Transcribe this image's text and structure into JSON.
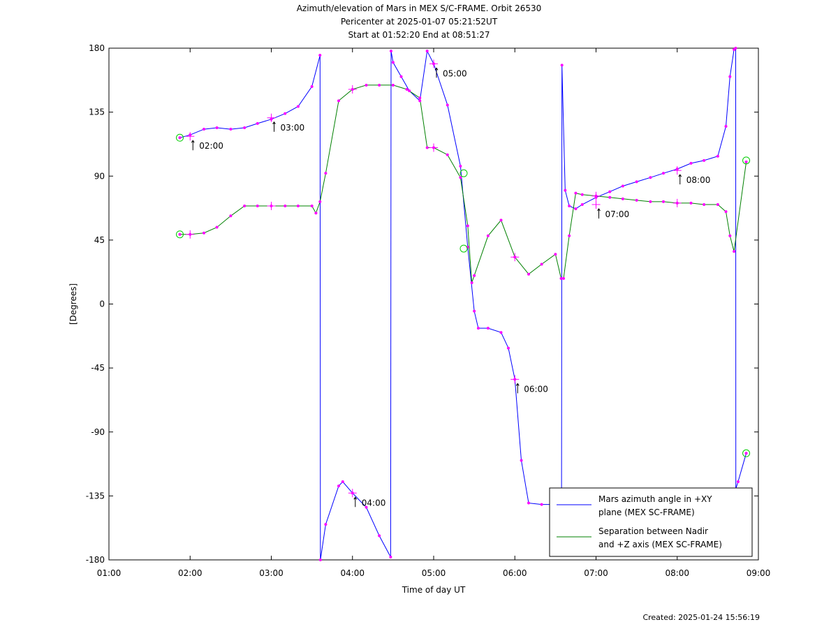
{
  "chart_data": {
    "type": "line",
    "title_lines": [
      "Azimuth/elevation of Mars in MEX S/C-FRAME.  Orbit 26530",
      "Pericenter at 2025-01-07 05:21:52UT",
      "Start at 01:52:20 End at 08:51:27"
    ],
    "xlabel": "Time of day UT",
    "ylabel": "[Degrees]",
    "xlim": [
      1.0,
      9.0
    ],
    "ylim": [
      -180,
      180
    ],
    "x_ticks": [
      1,
      2,
      3,
      4,
      5,
      6,
      7,
      8,
      9
    ],
    "x_tick_labels": [
      "01:00",
      "02:00",
      "03:00",
      "04:00",
      "05:00",
      "06:00",
      "07:00",
      "08:00",
      "09:00"
    ],
    "y_ticks": [
      180,
      135,
      90,
      45,
      0,
      -45,
      -90,
      -135,
      -180
    ],
    "y_tick_labels": [
      "180",
      "135",
      "90",
      "45",
      "0",
      "-45",
      "-90",
      "-135",
      "-180"
    ],
    "legend_position": "bottom-right",
    "series": [
      {
        "name": "Mars azimuth angle in +XY plane (MEX SC-FRAME)",
        "legend_lines": [
          "Mars azimuth angle in +XY",
          "plane (MEX SC-FRAME)"
        ],
        "color": "#0000ff",
        "x": [
          1.873,
          2.0,
          2.17,
          2.33,
          2.5,
          2.67,
          2.83,
          3.0,
          3.17,
          3.33,
          3.5,
          3.6,
          3.605,
          3.67,
          3.83,
          3.88,
          4.0,
          4.17,
          4.33,
          4.47,
          4.475,
          4.5,
          4.6,
          4.7,
          4.83,
          4.92,
          5.0,
          5.17,
          5.33,
          5.42,
          5.5,
          5.55,
          5.67,
          5.83,
          5.92,
          6.0,
          6.08,
          6.17,
          6.33,
          6.5,
          6.575,
          6.58,
          6.62,
          6.67,
          6.75,
          6.83,
          7.0,
          7.17,
          7.33,
          7.5,
          7.67,
          7.83,
          8.0,
          8.17,
          8.33,
          8.5,
          8.6,
          8.65,
          8.7,
          8.72,
          8.722,
          8.75,
          8.85
        ],
        "y": [
          117,
          119,
          123,
          124,
          123,
          124,
          127,
          130,
          134,
          139,
          153,
          175,
          -180,
          -155,
          -128,
          -125,
          -133,
          -143,
          -163,
          -178,
          178,
          170,
          160,
          150,
          143,
          178,
          169,
          140,
          97,
          40,
          -5,
          -17,
          -17,
          -20,
          -31,
          -53,
          -110,
          -140,
          -141,
          -141,
          -141,
          168,
          80,
          69,
          67,
          70,
          75,
          79,
          83,
          86,
          89,
          92,
          95,
          99,
          101,
          104,
          125,
          160,
          179,
          180,
          -130,
          -125,
          -105
        ]
      },
      {
        "name": "Separation between Nadir and +Z axis (MEX SC-FRAME)",
        "legend_lines": [
          "Separation between Nadir",
          "and +Z axis (MEX SC-FRAME)"
        ],
        "color": "#008000",
        "x": [
          1.873,
          2.0,
          2.17,
          2.33,
          2.5,
          2.67,
          2.83,
          3.0,
          3.17,
          3.33,
          3.5,
          3.55,
          3.6,
          3.67,
          3.83,
          4.0,
          4.17,
          4.33,
          4.5,
          4.67,
          4.83,
          4.92,
          5.0,
          5.17,
          5.33,
          5.42,
          5.47,
          5.5,
          5.67,
          5.83,
          6.0,
          6.17,
          6.33,
          6.5,
          6.57,
          6.6,
          6.67,
          6.75,
          6.83,
          7.0,
          7.17,
          7.33,
          7.5,
          7.67,
          7.83,
          8.0,
          8.17,
          8.33,
          8.5,
          8.6,
          8.65,
          8.7,
          8.85
        ],
        "y": [
          49,
          49,
          50,
          54,
          62,
          69,
          69,
          69,
          69,
          69,
          69,
          64,
          72,
          92,
          143,
          151,
          154,
          154,
          154,
          151,
          145,
          110,
          110,
          105,
          89,
          55,
          15,
          20,
          48,
          59,
          33,
          21,
          28,
          35,
          18,
          18,
          48,
          78,
          77,
          76,
          75,
          74,
          73,
          72,
          72,
          71,
          71,
          70,
          70,
          65,
          48,
          37,
          100
        ]
      }
    ],
    "annotations": [
      {
        "text": "02:00",
        "x": 2.0,
        "y": 118
      },
      {
        "text": "03:00",
        "x": 3.0,
        "y": 131
      },
      {
        "text": "04:00",
        "x": 4.0,
        "y": -133
      },
      {
        "text": "05:00",
        "x": 5.0,
        "y": 169
      },
      {
        "text": "06:00",
        "x": 6.0,
        "y": -53
      },
      {
        "text": "07:00",
        "x": 7.0,
        "y": 70
      },
      {
        "text": "08:00",
        "x": 8.0,
        "y": 94
      }
    ],
    "hour_crosses": [
      {
        "x": 2.0,
        "y": 118
      },
      {
        "x": 3.0,
        "y": 131
      },
      {
        "x": 4.0,
        "y": -133
      },
      {
        "x": 5.0,
        "y": 169
      },
      {
        "x": 6.0,
        "y": -53
      },
      {
        "x": 7.0,
        "y": 70
      },
      {
        "x": 8.0,
        "y": 94
      },
      {
        "x": 2.0,
        "y": 49
      },
      {
        "x": 3.0,
        "y": 69
      },
      {
        "x": 4.0,
        "y": 151
      },
      {
        "x": 5.0,
        "y": 110
      },
      {
        "x": 6.0,
        "y": 33
      },
      {
        "x": 7.0,
        "y": 76
      },
      {
        "x": 8.0,
        "y": 71
      }
    ],
    "start_end_circles": [
      {
        "x": 1.873,
        "y": 117
      },
      {
        "x": 1.873,
        "y": 49
      },
      {
        "x": 5.37,
        "y": 92
      },
      {
        "x": 5.37,
        "y": 39
      },
      {
        "x": 8.85,
        "y": 101
      },
      {
        "x": 8.85,
        "y": -105
      }
    ],
    "marker_color": "#ff00ff",
    "circle_color": "#00cc00"
  },
  "footer": {
    "created": "Created: 2025-01-24 15:56:19"
  }
}
